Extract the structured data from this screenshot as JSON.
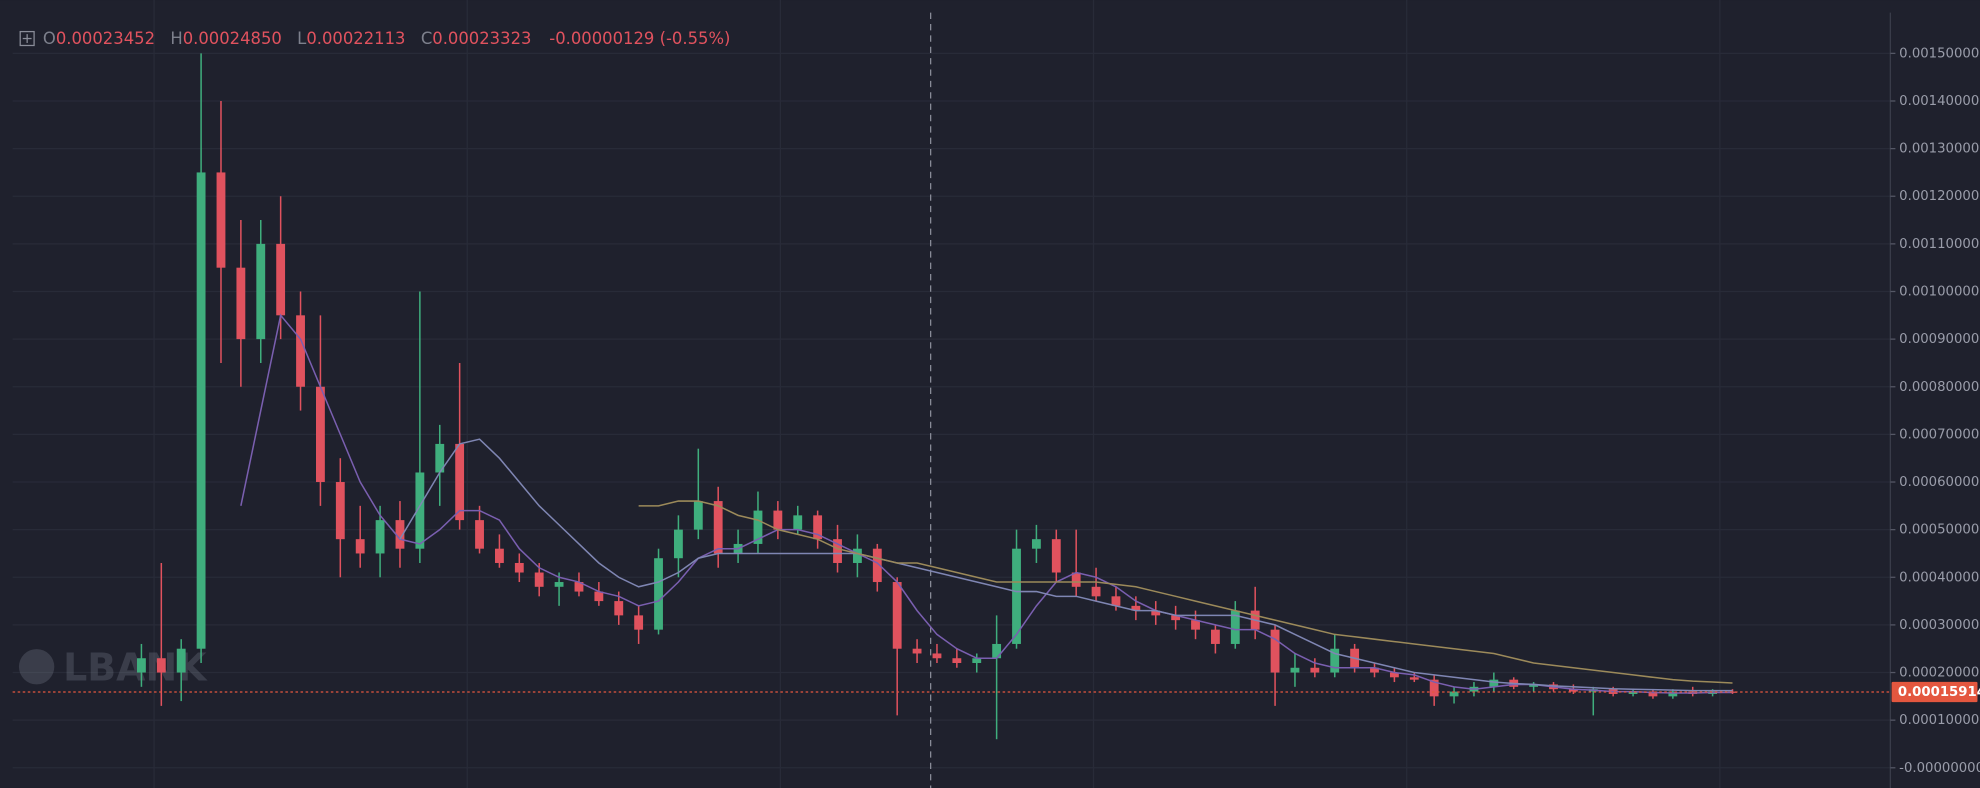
{
  "legend": {
    "o_label": "O",
    "o": "0.00023452",
    "h_label": "H",
    "h": "0.00024850",
    "l_label": "L",
    "l": "0.00022113",
    "c_label": "C",
    "c": "0.00023323",
    "change": "-0.00000129 (-0.55%)"
  },
  "watermark": "LBANK",
  "chart_data": {
    "type": "candlestick",
    "up_color": "#3fae7d",
    "down_color": "#e0525e",
    "grid": true,
    "ylim": [
      -4.24e-05,
      0.001612
    ],
    "yticks": [
      {
        "value": 0.0015,
        "label": "0.00150000"
      },
      {
        "value": 0.0014,
        "label": "0.00140000"
      },
      {
        "value": 0.0013,
        "label": "0.00130000"
      },
      {
        "value": 0.0012,
        "label": "0.00120000"
      },
      {
        "value": 0.0011,
        "label": "0.00110000"
      },
      {
        "value": 0.001,
        "label": "0.00100000"
      },
      {
        "value": 0.0009,
        "label": "0.00090000"
      },
      {
        "value": 0.0008,
        "label": "0.00080000"
      },
      {
        "value": 0.0007,
        "label": "0.00070000"
      },
      {
        "value": 0.0006,
        "label": "0.00060000"
      },
      {
        "value": 0.0005,
        "label": "0.00050000"
      },
      {
        "value": 0.0004,
        "label": "0.00040000"
      },
      {
        "value": 0.0003,
        "label": "0.00030000"
      },
      {
        "value": 0.0002,
        "label": "0.00020000"
      },
      {
        "value": 0.0001,
        "label": "0.00010000"
      },
      {
        "value": 0,
        "label": "-0.00000000"
      }
    ],
    "open": [
      0.0002,
      0.00023,
      0.0002,
      0.00025,
      0.00125,
      0.00105,
      0.0009,
      0.0011,
      0.00095,
      0.0008,
      0.0006,
      0.00048,
      0.00045,
      0.00052,
      0.00046,
      0.00062,
      0.00068,
      0.00052,
      0.00046,
      0.00043,
      0.00041,
      0.00038,
      0.00039,
      0.00037,
      0.00035,
      0.00032,
      0.00029,
      0.00044,
      0.0005,
      0.00056,
      0.00045,
      0.00047,
      0.00054,
      0.0005,
      0.00053,
      0.00048,
      0.00043,
      0.00046,
      0.00039,
      0.00025,
      0.00024,
      0.00023,
      0.00022,
      0.00023,
      0.00026,
      0.00046,
      0.00048,
      0.00041,
      0.00038,
      0.00036,
      0.00034,
      0.00033,
      0.00032,
      0.00031,
      0.00029,
      0.00026,
      0.00033,
      0.00029,
      0.0002,
      0.00021,
      0.0002,
      0.00025,
      0.00021,
      0.0002,
      0.00019,
      0.000185,
      0.00015,
      0.00016,
      0.00017,
      0.000185,
      0.00017,
      0.000175,
      0.000165,
      0.00016,
      0.000165,
      0.000155,
      0.00016,
      0.00015,
      0.00016,
      0.000155,
      0.00016
    ],
    "high": [
      0.00026,
      0.00043,
      0.00027,
      0.0015,
      0.0014,
      0.00115,
      0.00115,
      0.0012,
      0.001,
      0.00095,
      0.00065,
      0.00055,
      0.00055,
      0.00056,
      0.001,
      0.00072,
      0.00085,
      0.00055,
      0.00049,
      0.00045,
      0.00043,
      0.00041,
      0.00041,
      0.00039,
      0.00037,
      0.00034,
      0.00046,
      0.00053,
      0.00067,
      0.00059,
      0.0005,
      0.00058,
      0.00056,
      0.00055,
      0.00054,
      0.00051,
      0.00049,
      0.00047,
      0.0004,
      0.00027,
      0.00026,
      0.00025,
      0.00024,
      0.00032,
      0.0005,
      0.00051,
      0.0005,
      0.0005,
      0.00042,
      0.00038,
      0.00036,
      0.00035,
      0.00034,
      0.00033,
      0.0003,
      0.00035,
      0.00038,
      0.0003,
      0.00024,
      0.00023,
      0.00028,
      0.00026,
      0.00022,
      0.00021,
      0.0002,
      0.000195,
      0.00017,
      0.00018,
      0.0002,
      0.00019,
      0.00018,
      0.00018,
      0.000175,
      0.00017,
      0.00017,
      0.000165,
      0.000165,
      0.000165,
      0.00017,
      0.000165,
      0.000165
    ],
    "low": [
      0.00017,
      0.00013,
      0.00014,
      0.00022,
      0.00085,
      0.0008,
      0.00085,
      0.0009,
      0.00075,
      0.00055,
      0.0004,
      0.00042,
      0.0004,
      0.00042,
      0.00043,
      0.00055,
      0.0005,
      0.00045,
      0.00042,
      0.00039,
      0.00036,
      0.00034,
      0.00036,
      0.00034,
      0.0003,
      0.00026,
      0.00028,
      0.0004,
      0.00048,
      0.00042,
      0.00043,
      0.00045,
      0.00048,
      0.00049,
      0.00046,
      0.00041,
      0.0004,
      0.00037,
      0.00011,
      0.00022,
      0.00022,
      0.00021,
      0.0002,
      6e-05,
      0.00025,
      0.00043,
      0.00039,
      0.00036,
      0.00035,
      0.00033,
      0.00031,
      0.0003,
      0.00029,
      0.00027,
      0.00024,
      0.00025,
      0.00027,
      0.00013,
      0.00017,
      0.00019,
      0.00019,
      0.0002,
      0.00019,
      0.00018,
      0.00018,
      0.00013,
      0.000135,
      0.00015,
      0.00016,
      0.000165,
      0.00016,
      0.00016,
      0.000155,
      0.00011,
      0.00015,
      0.00015,
      0.000145,
      0.000145,
      0.00015,
      0.00015,
      0.000155
    ],
    "close": [
      0.00023,
      0.0002,
      0.00025,
      0.00125,
      0.00105,
      0.0009,
      0.0011,
      0.00095,
      0.0008,
      0.0006,
      0.00048,
      0.00045,
      0.00052,
      0.00046,
      0.00062,
      0.00068,
      0.00052,
      0.00046,
      0.00043,
      0.00041,
      0.00038,
      0.00039,
      0.00037,
      0.00035,
      0.00032,
      0.00029,
      0.00044,
      0.0005,
      0.00056,
      0.00045,
      0.00047,
      0.00054,
      0.0005,
      0.00053,
      0.00048,
      0.00043,
      0.00046,
      0.00039,
      0.00025,
      0.00024,
      0.00023,
      0.00022,
      0.00023,
      0.00026,
      0.00046,
      0.00048,
      0.00041,
      0.00038,
      0.00036,
      0.00034,
      0.00033,
      0.00032,
      0.00031,
      0.00029,
      0.00026,
      0.00033,
      0.00029,
      0.0002,
      0.00021,
      0.0002,
      0.00025,
      0.00021,
      0.0002,
      0.00019,
      0.000185,
      0.00015,
      0.00016,
      0.00017,
      0.000185,
      0.00017,
      0.000175,
      0.000165,
      0.00016,
      0.000165,
      0.000155,
      0.00016,
      0.00015,
      0.00016,
      0.000155,
      0.00016,
      0.00015914
    ],
    "last_price_color": "#e4573f",
    "series": [
      {
        "color": "#7a5fb0",
        "values": [
          null,
          null,
          null,
          null,
          null,
          0.00055,
          0.00075,
          0.00095,
          0.0009,
          0.0008,
          0.0007,
          0.0006,
          0.00053,
          0.00048,
          0.00047,
          0.0005,
          0.00054,
          0.00054,
          0.00052,
          0.00046,
          0.00042,
          0.0004,
          0.00039,
          0.00037,
          0.00036,
          0.00034,
          0.00035,
          0.00039,
          0.00044,
          0.00046,
          0.00046,
          0.00048,
          0.0005,
          0.0005,
          0.00049,
          0.00047,
          0.00045,
          0.00043,
          0.00039,
          0.00033,
          0.00028,
          0.00025,
          0.00023,
          0.00023,
          0.00028,
          0.00034,
          0.00039,
          0.00041,
          0.0004,
          0.00038,
          0.00035,
          0.00033,
          0.00032,
          0.00031,
          0.0003,
          0.00029,
          0.00029,
          0.00027,
          0.00024,
          0.00022,
          0.00021,
          0.00021,
          0.00021,
          0.0002,
          0.000195,
          0.00018,
          0.00017,
          0.000165,
          0.00017,
          0.000175,
          0.000175,
          0.00017,
          0.000165,
          0.000163,
          0.00016,
          0.00016,
          0.000158,
          0.000157,
          0.000157,
          0.000158,
          0.000158
        ]
      },
      {
        "color": "#7f86b3",
        "values": [
          null,
          null,
          null,
          null,
          null,
          null,
          null,
          null,
          null,
          null,
          null,
          null,
          null,
          0.00048,
          0.00055,
          0.00062,
          0.00068,
          0.00069,
          0.00065,
          0.0006,
          0.00055,
          0.00051,
          0.00047,
          0.00043,
          0.0004,
          0.00038,
          0.00039,
          0.00041,
          0.00044,
          0.00045,
          0.00045,
          0.00045,
          0.00045,
          0.00045,
          0.00045,
          0.00045,
          0.00045,
          0.00044,
          0.00043,
          0.00042,
          0.00041,
          0.0004,
          0.00039,
          0.00038,
          0.00037,
          0.00037,
          0.00036,
          0.00036,
          0.00035,
          0.00034,
          0.00033,
          0.00033,
          0.00032,
          0.00032,
          0.00032,
          0.00032,
          0.00031,
          0.0003,
          0.00028,
          0.00026,
          0.00024,
          0.00023,
          0.00022,
          0.00021,
          0.0002,
          0.000195,
          0.00019,
          0.000185,
          0.00018,
          0.000177,
          0.000175,
          0.000172,
          0.00017,
          0.000168,
          0.000166,
          0.000165,
          0.000164,
          0.000163,
          0.000162,
          0.000162,
          0.000162
        ]
      },
      {
        "color": "#9c8a5a",
        "values": [
          null,
          null,
          null,
          null,
          null,
          null,
          null,
          null,
          null,
          null,
          null,
          null,
          null,
          null,
          null,
          null,
          null,
          null,
          null,
          null,
          null,
          null,
          null,
          null,
          null,
          0.00055,
          0.00055,
          0.00056,
          0.00056,
          0.00055,
          0.00053,
          0.00052,
          0.0005,
          0.00049,
          0.00048,
          0.00046,
          0.00045,
          0.00044,
          0.00043,
          0.00043,
          0.00042,
          0.00041,
          0.0004,
          0.00039,
          0.00039,
          0.00039,
          0.00039,
          0.00039,
          0.00039,
          0.000385,
          0.00038,
          0.00037,
          0.00036,
          0.00035,
          0.00034,
          0.00033,
          0.00032,
          0.00031,
          0.0003,
          0.00029,
          0.00028,
          0.000275,
          0.00027,
          0.000265,
          0.00026,
          0.000255,
          0.00025,
          0.000245,
          0.00024,
          0.00023,
          0.00022,
          0.000215,
          0.00021,
          0.000205,
          0.0002,
          0.000195,
          0.00019,
          0.000185,
          0.000182,
          0.00018,
          0.000178
        ]
      }
    ]
  }
}
